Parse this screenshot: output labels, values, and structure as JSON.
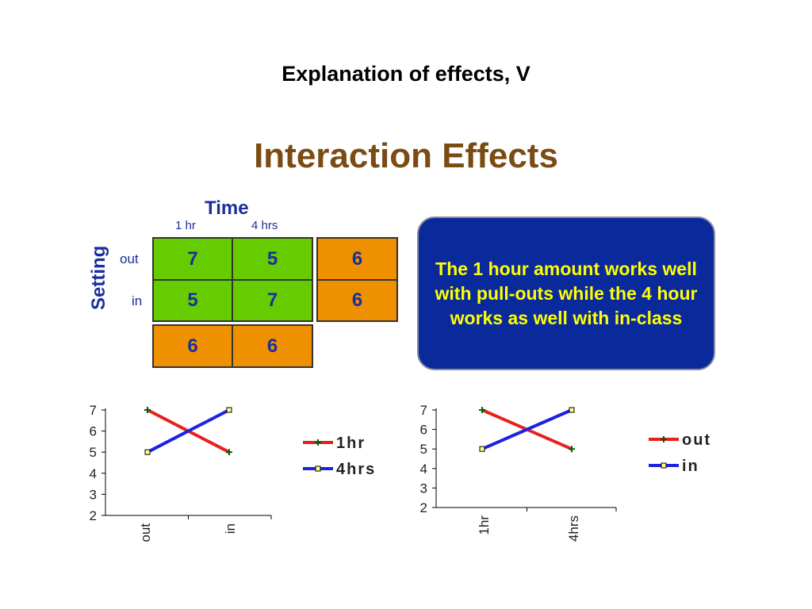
{
  "slide": {
    "title": "Explanation of effects, V",
    "subtitle": "Interaction Effects"
  },
  "table": {
    "col_factor": "Time",
    "row_factor": "Setting",
    "col_headers": [
      "1 hr",
      "4 hrs"
    ],
    "row_headers": [
      "out",
      "in"
    ],
    "cells": [
      [
        "7",
        "5"
      ],
      [
        "5",
        "7"
      ]
    ],
    "row_means": [
      "6",
      "6"
    ],
    "col_means": [
      "6",
      "6"
    ],
    "colors": {
      "cells": "#66cc00",
      "means": "#ee9000",
      "text": "#1a2f9c"
    }
  },
  "callout": {
    "text": "The 1 hour amount works well with pull-outs while the 4 hour works as well with in-class",
    "colors": {
      "background": "#0a2a9c",
      "text": "#ffff00"
    }
  },
  "chart_data": [
    {
      "type": "line",
      "categories": [
        "out",
        "in"
      ],
      "series": [
        {
          "name": "1hr",
          "values": [
            7,
            5
          ],
          "color": "#e8201c",
          "marker": "cross"
        },
        {
          "name": "4hrs",
          "values": [
            5,
            7
          ],
          "color": "#1c22e0",
          "marker": "square"
        }
      ],
      "yticks": [
        "2",
        "3",
        "4",
        "5",
        "6",
        "7"
      ],
      "ylim": [
        2,
        7
      ],
      "legend": "right"
    },
    {
      "type": "line",
      "categories": [
        "1hr",
        "4hrs"
      ],
      "series": [
        {
          "name": "out",
          "values": [
            7,
            5
          ],
          "color": "#e8201c",
          "marker": "cross"
        },
        {
          "name": "in",
          "values": [
            5,
            7
          ],
          "color": "#1c22e0",
          "marker": "square"
        }
      ],
      "yticks": [
        "2",
        "3",
        "4",
        "5",
        "6",
        "7"
      ],
      "ylim": [
        2,
        7
      ],
      "legend": "right"
    }
  ]
}
